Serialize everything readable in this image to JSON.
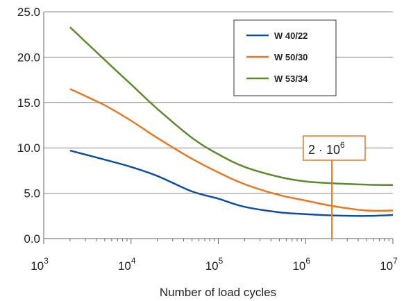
{
  "chart_data": {
    "type": "line",
    "xlabel": "Number of load cycles",
    "ylabel": "",
    "xscale": "log",
    "xlim": [
      1000,
      10000000
    ],
    "ylim": [
      0,
      25
    ],
    "y_ticks": [
      "0.0",
      "5.0",
      "10.0",
      "15.0",
      "20.0",
      "25.0"
    ],
    "y_tick_values": [
      0,
      5,
      10,
      15,
      20,
      25
    ],
    "x_ticks": [
      {
        "base": "10",
        "exp": "3",
        "value": 1000
      },
      {
        "base": "10",
        "exp": "4",
        "value": 10000
      },
      {
        "base": "10",
        "exp": "5",
        "value": 100000
      },
      {
        "base": "10",
        "exp": "6",
        "value": 1000000
      },
      {
        "base": "10",
        "exp": "7",
        "value": 10000000
      }
    ],
    "grid": "horizontal",
    "legend_position": "top-right",
    "series": [
      {
        "name": "W 40/22",
        "color": "#0d4f9e",
        "x": [
          2000,
          5000,
          10000,
          20000,
          50000,
          100000,
          200000,
          500000,
          1000000,
          2000000,
          5000000,
          10000000
        ],
        "y": [
          9.7,
          8.7,
          7.9,
          6.9,
          5.2,
          4.4,
          3.5,
          2.9,
          2.7,
          2.55,
          2.5,
          2.6
        ]
      },
      {
        "name": "W 50/30",
        "color": "#e87722",
        "x": [
          2000,
          5000,
          10000,
          20000,
          50000,
          100000,
          200000,
          500000,
          1000000,
          2000000,
          5000000,
          10000000
        ],
        "y": [
          16.5,
          14.7,
          13.0,
          11.1,
          8.8,
          7.3,
          6.0,
          4.8,
          4.2,
          3.6,
          3.1,
          3.1
        ]
      },
      {
        "name": "W 53/34",
        "color": "#5b8c2a",
        "x": [
          2000,
          5000,
          10000,
          20000,
          50000,
          100000,
          200000,
          500000,
          1000000,
          2000000,
          5000000,
          10000000
        ],
        "y": [
          23.3,
          19.7,
          17.0,
          14.3,
          11.1,
          9.3,
          7.9,
          6.8,
          6.3,
          6.1,
          5.95,
          5.9
        ]
      }
    ],
    "annotation": {
      "text_base": "2 · 10",
      "text_exp": "6",
      "x": 2000000,
      "color": "#e87722"
    }
  }
}
